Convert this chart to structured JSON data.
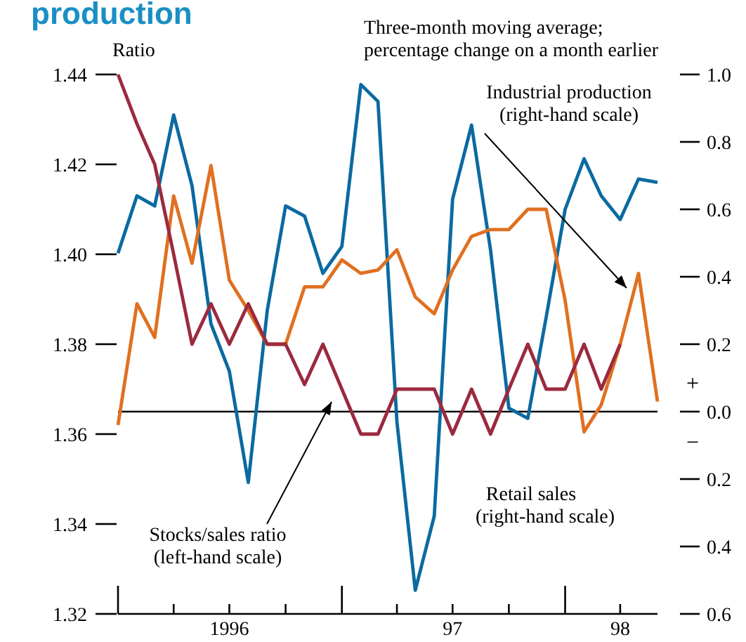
{
  "chart_data": {
    "type": "line",
    "title": "production",
    "ylabel": "Ratio",
    "y2label": "Three-month moving average;\npercentage change on a month earlier",
    "x": [
      "1996-01",
      "1996-02",
      "1996-03",
      "1996-04",
      "1996-05",
      "1996-06",
      "1996-07",
      "1996-08",
      "1996-09",
      "1996-10",
      "1996-11",
      "1996-12",
      "1997-01",
      "1997-02",
      "1997-03",
      "1997-04",
      "1997-05",
      "1997-06",
      "1997-07",
      "1997-08",
      "1997-09",
      "1997-10",
      "1997-11",
      "1997-12",
      "1998-01",
      "1998-02",
      "1998-03",
      "1998-04",
      "1998-05",
      "1998-06"
    ],
    "series": [
      {
        "name": "Retail sales (right-hand scale)",
        "color": "#0a6aa1",
        "axis": "y2",
        "values": [
          0.47,
          0.64,
          0.61,
          0.88,
          0.67,
          0.26,
          0.12,
          -0.21,
          0.3,
          0.61,
          0.58,
          0.41,
          0.49,
          0.97,
          0.92,
          -0.03,
          -0.53,
          -0.31,
          0.63,
          0.85,
          0.48,
          0.01,
          -0.02,
          0.28,
          0.6,
          0.75,
          0.64,
          0.57,
          0.69,
          0.68
        ]
      },
      {
        "name": "Industrial production (right-hand scale)",
        "color": "#e07020",
        "axis": "y2",
        "values": [
          -0.04,
          0.32,
          0.22,
          0.64,
          0.44,
          0.73,
          0.39,
          0.3,
          0.2,
          0.2,
          0.37,
          0.37,
          0.45,
          0.41,
          0.42,
          0.48,
          0.34,
          0.29,
          0.42,
          0.52,
          0.54,
          0.54,
          0.6,
          0.6,
          0.33,
          -0.06,
          0.02,
          0.2,
          0.41,
          0.03
        ]
      },
      {
        "name": "Stocks/sales ratio (left-hand scale)",
        "color": "#9b2a3f",
        "values": [
          1.44,
          1.429,
          1.42,
          1.4,
          1.38,
          1.389,
          1.38,
          1.389,
          1.38,
          1.38,
          1.371,
          1.38,
          1.37,
          1.36,
          1.36,
          1.37,
          1.37,
          1.37,
          1.36,
          1.37,
          1.36,
          1.37,
          1.38,
          1.37,
          1.37,
          1.38,
          1.37,
          1.38,
          null,
          null
        ]
      }
    ],
    "xlim": [
      "1996-01",
      "1998-06"
    ],
    "xticks": [
      {
        "value": "1996-01",
        "label": null
      },
      {
        "value": "1996-04",
        "label": null
      },
      {
        "value": "1996-07",
        "label": "1996"
      },
      {
        "value": "1996-10",
        "label": null
      },
      {
        "value": "1997-01",
        "label": null
      },
      {
        "value": "1997-04",
        "label": null
      },
      {
        "value": "1997-07",
        "label": "97"
      },
      {
        "value": "1997-10",
        "label": null
      },
      {
        "value": "1998-01",
        "label": null
      },
      {
        "value": "1998-04",
        "label": "98"
      }
    ],
    "ylim": [
      1.32,
      1.44
    ],
    "yticks": [
      1.32,
      1.34,
      1.36,
      1.38,
      {
        "value": 1.4,
        "label": "1.40"
      },
      1.42,
      1.44
    ],
    "y2lim": [
      -0.6,
      1.0
    ],
    "y2ticks": [
      {
        "value": -0.6,
        "label": "0.6"
      },
      {
        "value": -0.4,
        "label": "0.4"
      },
      {
        "value": -0.2,
        "label": "0.2"
      },
      {
        "value": 0,
        "label": "0.0"
      },
      0.2,
      0.4,
      0.6,
      0.8,
      {
        "value": 1,
        "label": "1.0"
      }
    ],
    "ref_lines": [
      {
        "axis": "y2",
        "value": 0,
        "color": "#000000"
      }
    ],
    "annotations": [
      "+",
      "−"
    ],
    "grid": false
  }
}
